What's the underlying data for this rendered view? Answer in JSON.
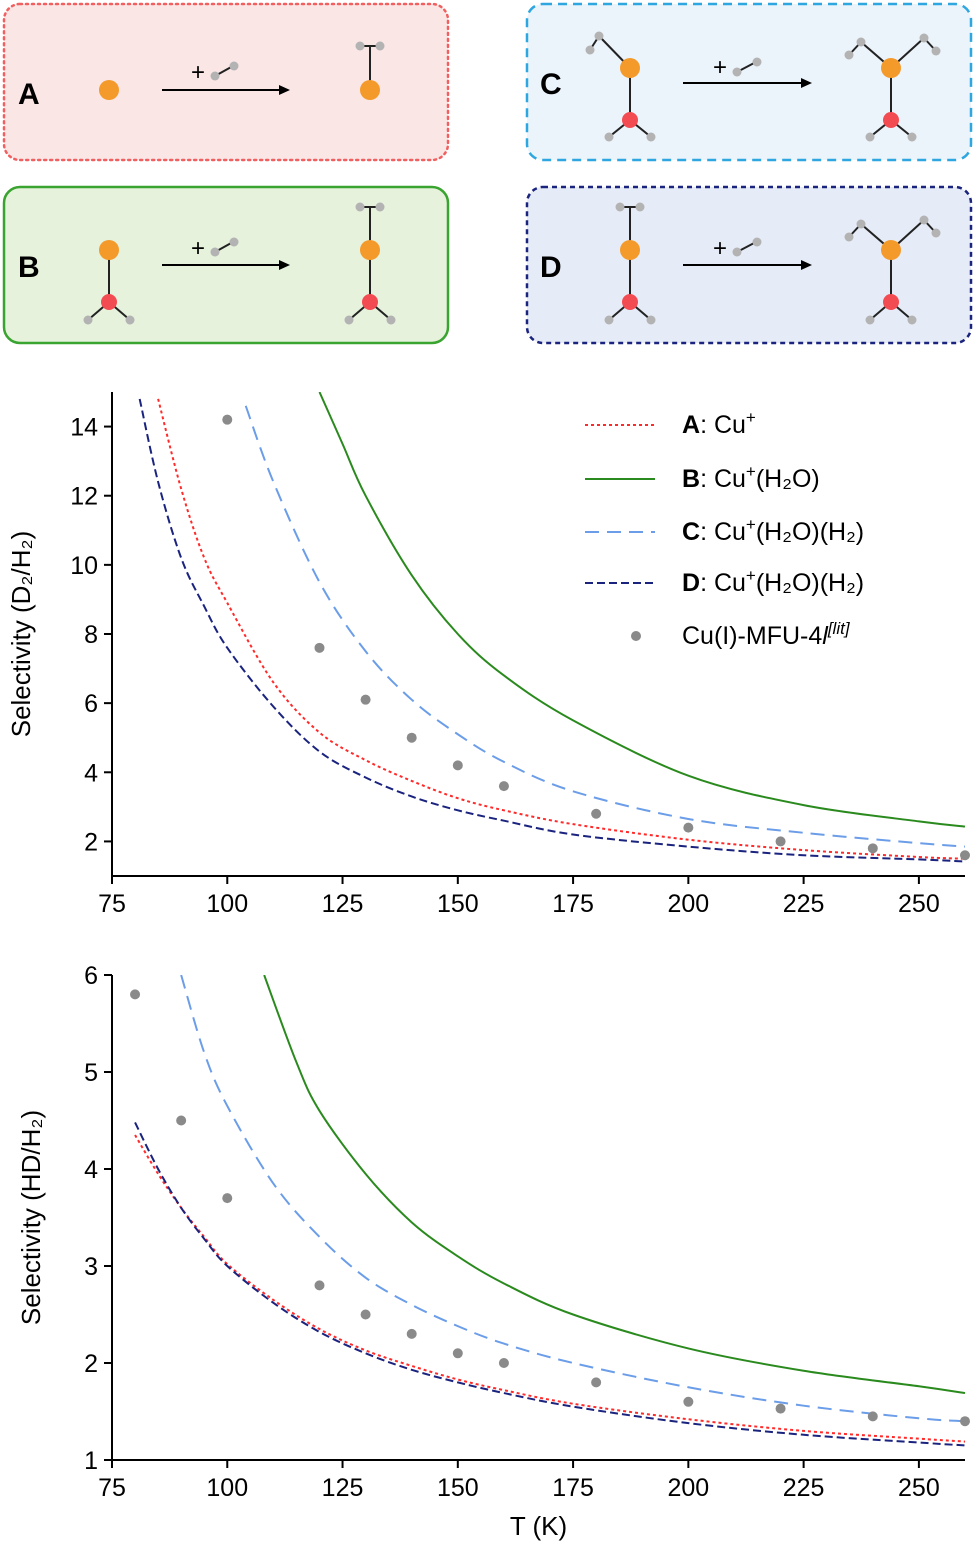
{
  "colors": {
    "A": "#ff2a2a",
    "B": "#2a8a1e",
    "C": "#6b9de8",
    "D": "#1a237e",
    "expt": "#8a8a8a",
    "copper": "#f39a2b",
    "oxygen": "#f24b52",
    "hydrogen": "#b3b3b3"
  },
  "reaction_panels": [
    {
      "letter": "A",
      "plus": "+",
      "fill": "#fbe6e6",
      "border": "#f06060",
      "border_style": "dotted"
    },
    {
      "letter": "B",
      "plus": "+",
      "fill": "#e6f2dc",
      "border": "#3aa430",
      "border_style": "solid"
    },
    {
      "letter": "C",
      "plus": "+",
      "fill": "#ecf4fb",
      "border": "#2ea6e0",
      "border_style": "dashed"
    },
    {
      "letter": "D",
      "plus": "+",
      "fill": "#e6ecf7",
      "border": "#1a237e",
      "border_style": "dashed"
    }
  ],
  "legend": [
    {
      "bold": "A",
      "rest": ": Cu",
      "sup1": "+",
      "rest2": "",
      "style": "dotted",
      "color": "#ff2a2a"
    },
    {
      "bold": "B",
      "rest": ": Cu",
      "sup1": "+",
      "rest2": "(H₂O)",
      "style": "solid",
      "color": "#2a8a1e"
    },
    {
      "bold": "C",
      "rest": ": Cu",
      "sup1": "+",
      "rest2": "(H₂O)(H₂)",
      "style": "long-dash",
      "color": "#6b9de8"
    },
    {
      "bold": "D",
      "rest": ": Cu",
      "sup1": "+",
      "rest2": "(H₂O)(H₂)",
      "style": "short-dash",
      "color": "#1a237e"
    },
    {
      "bold": "",
      "rest": "Cu(I)-MFU-4",
      "italic": "l",
      "sup_italic": "[lit]",
      "style": "marker",
      "color": "#8a8a8a"
    }
  ],
  "chart_data": [
    {
      "type": "line",
      "title": "",
      "xlabel": "",
      "ylabel": "Selectivity (D₂/H₂)",
      "xlim": [
        75,
        260
      ],
      "ylim": [
        1,
        15
      ],
      "xticks": [
        "75",
        "100",
        "125",
        "150",
        "175",
        "200",
        "225",
        "250"
      ],
      "yticks": [
        "2",
        "4",
        "6",
        "8",
        "10",
        "12",
        "14"
      ],
      "series": [
        {
          "name": "A: Cu+",
          "x": [
            85,
            90,
            95,
            100,
            110,
            120,
            130,
            140,
            150,
            160,
            175,
            200,
            225,
            250,
            260
          ],
          "values": [
            14.8,
            12.2,
            10.2,
            8.9,
            6.6,
            5.15,
            4.35,
            3.75,
            3.25,
            2.9,
            2.5,
            2.05,
            1.75,
            1.55,
            1.5
          ]
        },
        {
          "name": "B: Cu+(H2O)",
          "x": [
            120,
            125,
            130,
            140,
            150,
            160,
            175,
            200,
            225,
            250,
            260
          ],
          "values": [
            15.0,
            13.5,
            12.0,
            9.7,
            8.0,
            6.8,
            5.5,
            3.9,
            3.05,
            2.58,
            2.43
          ]
        },
        {
          "name": "C: Cu+(H2O)(H2)",
          "x": [
            104,
            110,
            120,
            130,
            140,
            150,
            160,
            175,
            200,
            225,
            250,
            260
          ],
          "values": [
            14.6,
            12.4,
            9.5,
            7.5,
            6.1,
            5.1,
            4.3,
            3.45,
            2.65,
            2.25,
            1.95,
            1.85
          ]
        },
        {
          "name": "D: Cu+(H2O)(H2)",
          "x": [
            81,
            85,
            90,
            95,
            100,
            110,
            120,
            130,
            140,
            150,
            160,
            175,
            200,
            225,
            250,
            260
          ],
          "values": [
            14.8,
            12.4,
            10.2,
            8.8,
            7.6,
            5.9,
            4.6,
            3.85,
            3.3,
            2.9,
            2.6,
            2.2,
            1.85,
            1.6,
            1.48,
            1.42
          ]
        }
      ],
      "points": {
        "name": "Cu(I)-MFU-4l[lit]",
        "x": [
          100,
          120,
          130,
          140,
          150,
          160,
          180,
          200,
          220,
          240,
          260
        ],
        "values": [
          14.2,
          7.6,
          6.1,
          5.0,
          4.2,
          3.6,
          2.8,
          2.4,
          2.0,
          1.8,
          1.6
        ]
      }
    },
    {
      "type": "line",
      "title": "",
      "xlabel": "T (K)",
      "ylabel": "Selectivity (HD/H₂)",
      "xlim": [
        75,
        260
      ],
      "ylim": [
        1,
        6
      ],
      "xticks": [
        "75",
        "100",
        "125",
        "150",
        "175",
        "200",
        "225",
        "250"
      ],
      "yticks": [
        "1",
        "2",
        "3",
        "4",
        "5",
        "6"
      ],
      "series": [
        {
          "name": "A: Cu+",
          "x": [
            80,
            85,
            90,
            95,
            100,
            110,
            120,
            130,
            140,
            150,
            160,
            175,
            200,
            225,
            250,
            260
          ],
          "values": [
            4.35,
            3.95,
            3.6,
            3.3,
            3.02,
            2.65,
            2.35,
            2.13,
            1.97,
            1.83,
            1.72,
            1.58,
            1.42,
            1.3,
            1.22,
            1.19
          ]
        },
        {
          "name": "B: Cu+(H2O)",
          "x": [
            108,
            115,
            120,
            130,
            140,
            150,
            160,
            175,
            200,
            225,
            250,
            260
          ],
          "values": [
            6.0,
            5.1,
            4.6,
            3.95,
            3.45,
            3.1,
            2.82,
            2.5,
            2.15,
            1.92,
            1.76,
            1.69
          ]
        },
        {
          "name": "C: Cu+(H2O)(H2)",
          "x": [
            90,
            95,
            100,
            110,
            120,
            130,
            140,
            150,
            160,
            175,
            200,
            225,
            250,
            260
          ],
          "values": [
            6.0,
            5.2,
            4.65,
            3.85,
            3.3,
            2.88,
            2.6,
            2.38,
            2.2,
            2.0,
            1.75,
            1.56,
            1.43,
            1.4
          ]
        },
        {
          "name": "D: Cu+(H2O)(H2)",
          "x": [
            80,
            85,
            90,
            95,
            100,
            110,
            120,
            130,
            140,
            150,
            160,
            175,
            200,
            225,
            250,
            260
          ],
          "values": [
            4.48,
            4.0,
            3.6,
            3.28,
            3.0,
            2.62,
            2.32,
            2.1,
            1.93,
            1.8,
            1.69,
            1.55,
            1.38,
            1.26,
            1.18,
            1.15
          ]
        }
      ],
      "points": {
        "name": "Cu(I)-MFU-4l[lit]",
        "x": [
          80,
          90,
          100,
          120,
          130,
          140,
          150,
          160,
          180,
          200,
          220,
          240,
          260
        ],
        "values": [
          5.8,
          4.5,
          3.7,
          2.8,
          2.5,
          2.3,
          2.1,
          2.0,
          1.8,
          1.6,
          1.53,
          1.45,
          1.4
        ]
      }
    }
  ]
}
